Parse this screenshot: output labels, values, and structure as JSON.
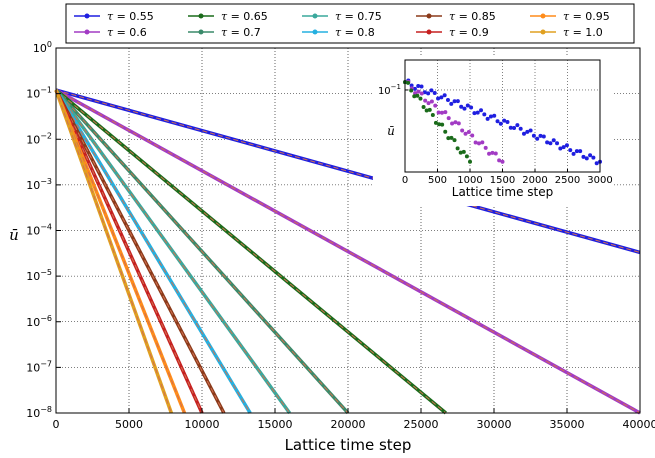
{
  "chart_data": [
    {
      "type": "line",
      "xlabel": "Lattice time step",
      "ylabel": "ū",
      "xlim": [
        0,
        40000
      ],
      "ylim": [
        1e-08,
        1
      ],
      "yscale": "log",
      "grid": true,
      "legend_placement": "top",
      "x_ticks": [
        "0",
        "5000",
        "10000",
        "15000",
        "20000",
        "25000",
        "30000",
        "35000",
        "40000"
      ],
      "y_ticks": [
        {
          "base": "10",
          "exp": "0"
        },
        {
          "base": "10",
          "exp": "−1"
        },
        {
          "base": "10",
          "exp": "−2"
        },
        {
          "base": "10",
          "exp": "−3"
        },
        {
          "base": "10",
          "exp": "−4"
        },
        {
          "base": "10",
          "exp": "−5"
        },
        {
          "base": "10",
          "exp": "−6"
        },
        {
          "base": "10",
          "exp": "−7"
        },
        {
          "base": "10",
          "exp": "−8"
        }
      ],
      "series": [
        {
          "name": "0.55",
          "color": "#1f1fe0",
          "x": [
            0,
            40000
          ],
          "y": [
            0.12,
            3.3e-05
          ]
        },
        {
          "name": "0.6",
          "color": "#a23bc4",
          "x": [
            0,
            40000
          ],
          "y": [
            0.12,
            1e-08
          ]
        },
        {
          "name": "0.65",
          "color": "#1a6b1a",
          "x": [
            0,
            26700
          ],
          "y": [
            0.12,
            1e-08
          ]
        },
        {
          "name": "0.7",
          "color": "#3a8a6a",
          "x": [
            0,
            20000
          ],
          "y": [
            0.12,
            1e-08
          ]
        },
        {
          "name": "0.75",
          "color": "#3aa89c",
          "x": [
            0,
            16000
          ],
          "y": [
            0.12,
            1e-08
          ]
        },
        {
          "name": "0.8",
          "color": "#25b0e0",
          "x": [
            0,
            13300
          ],
          "y": [
            0.12,
            1e-08
          ]
        },
        {
          "name": "0.85",
          "color": "#8b3a1a",
          "x": [
            0,
            11500
          ],
          "y": [
            0.12,
            1e-08
          ]
        },
        {
          "name": "0.9",
          "color": "#c62020",
          "x": [
            0,
            10000
          ],
          "y": [
            0.12,
            1e-08
          ]
        },
        {
          "name": "0.95",
          "color": "#ff8c1a",
          "x": [
            0,
            8800
          ],
          "y": [
            0.12,
            1e-08
          ]
        },
        {
          "name": "1.0",
          "color": "#e0a020",
          "x": [
            0,
            7900
          ],
          "y": [
            0.12,
            1e-08
          ]
        }
      ],
      "overlay": {
        "color": "#d07050",
        "style": "dashed"
      }
    },
    {
      "type": "scatter",
      "xlabel": "Lattice time step",
      "ylabel": "ū",
      "xlim": [
        0,
        3000
      ],
      "ylim": [
        0.015,
        0.2
      ],
      "yscale": "log",
      "grid": true,
      "x_ticks": [
        "0",
        "500",
        "1000",
        "1500",
        "2000",
        "2500",
        "3000"
      ],
      "y_ticks": [
        {
          "base": "10",
          "exp": "−1"
        }
      ],
      "series": [
        {
          "color": "#1f1fe0",
          "x": [
            0,
            3000
          ],
          "y": [
            0.12,
            0.019
          ],
          "points": 60
        },
        {
          "color": "#a23bc4",
          "x": [
            0,
            1500
          ],
          "y": [
            0.12,
            0.019
          ],
          "points": 30
        },
        {
          "color": "#1a6b1a",
          "x": [
            0,
            1000
          ],
          "y": [
            0.12,
            0.019
          ],
          "points": 22
        }
      ]
    }
  ]
}
